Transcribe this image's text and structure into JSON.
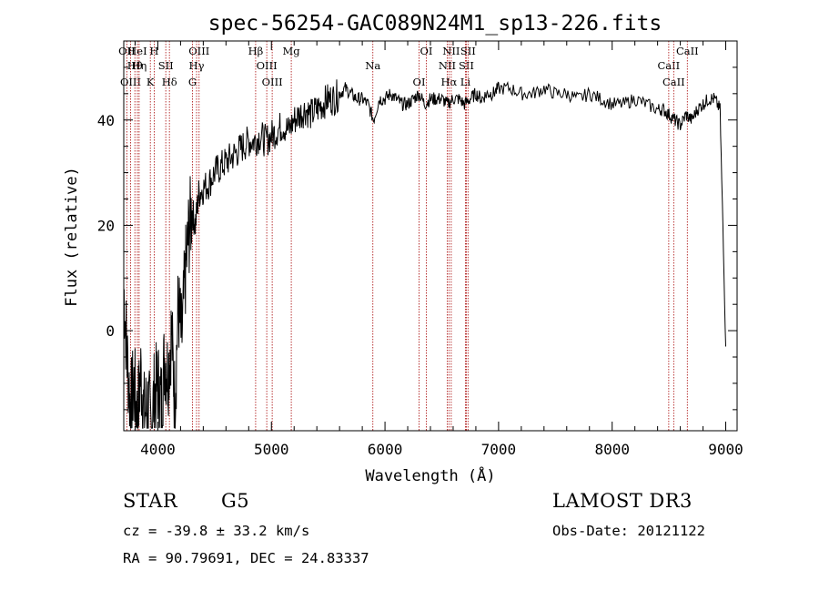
{
  "chart_data": {
    "type": "line",
    "title": "spec-56254-GAC089N24M1_sp13-226.fits",
    "xlabel": "Wavelength (Å)",
    "ylabel": "Flux (relative)",
    "xlim": [
      3700,
      9100
    ],
    "ylim": [
      -19,
      55
    ],
    "xticks": [
      4000,
      5000,
      6000,
      7000,
      8000,
      9000
    ],
    "yticks": [
      0,
      20,
      40
    ],
    "series": [
      {
        "name": "flux",
        "x": [
          3700,
          3730,
          3760,
          3790,
          3820,
          3850,
          3880,
          3910,
          3940,
          3970,
          4000,
          4030,
          4060,
          4090,
          4120,
          4150,
          4180,
          4210,
          4240,
          4270,
          4300,
          4330,
          4360,
          4400,
          4450,
          4500,
          4550,
          4600,
          4650,
          4700,
          4750,
          4800,
          4850,
          4900,
          4950,
          5000,
          5050,
          5100,
          5150,
          5200,
          5250,
          5300,
          5350,
          5400,
          5450,
          5500,
          5550,
          5600,
          5650,
          5700,
          5750,
          5800,
          5850,
          5900,
          5950,
          6000,
          6050,
          6100,
          6150,
          6200,
          6250,
          6300,
          6350,
          6400,
          6450,
          6500,
          6550,
          6600,
          6650,
          6700,
          6750,
          6800,
          6850,
          6900,
          6950,
          7000,
          7100,
          7200,
          7300,
          7400,
          7500,
          7600,
          7700,
          7800,
          7900,
          8000,
          8100,
          8200,
          8300,
          8400,
          8450,
          8500,
          8550,
          8600,
          8650,
          8700,
          8750,
          8800,
          8850,
          8900,
          8950,
          9000
        ],
        "y": [
          8,
          -5,
          -15,
          -10,
          -17,
          -8,
          -16,
          -14,
          -18,
          -12,
          -10,
          -14,
          -5,
          -8,
          0,
          -14,
          5,
          -2,
          10,
          18,
          23,
          20,
          26,
          27,
          28,
          30,
          31,
          32,
          33,
          34,
          35,
          36,
          36,
          37,
          36,
          37,
          38,
          39,
          38,
          40,
          41,
          42,
          41,
          42,
          43,
          44,
          44,
          45,
          46,
          45,
          44,
          44,
          43,
          40,
          44,
          44,
          45,
          44,
          43,
          43,
          44,
          45,
          43,
          44,
          44,
          44,
          43,
          44,
          44,
          43,
          44,
          45,
          44,
          45,
          45,
          46,
          46,
          45,
          45,
          46,
          45,
          45,
          44,
          45,
          44,
          43,
          43,
          44,
          43,
          42,
          42,
          41,
          40,
          39,
          41,
          40,
          42,
          43,
          44,
          44,
          42,
          -3
        ]
      }
    ],
    "spectral_lines": [
      {
        "label": "OII",
        "wavelength": 3727
      },
      {
        "label": "Hθ",
        "wavelength": 3798
      },
      {
        "label": "OIII",
        "wavelength": 3760
      },
      {
        "label": "HeI",
        "wavelength": 3820
      },
      {
        "label": "Hη",
        "wavelength": 3835
      },
      {
        "label": "K",
        "wavelength": 3934
      },
      {
        "label": "H",
        "wavelength": 3968
      },
      {
        "label": "SII",
        "wavelength": 4070
      },
      {
        "label": "Hδ",
        "wavelength": 4102
      },
      {
        "label": "OIII",
        "wavelength": 4363
      },
      {
        "label": "Hγ",
        "wavelength": 4341
      },
      {
        "label": "G",
        "wavelength": 4305
      },
      {
        "label": "Hβ",
        "wavelength": 4861
      },
      {
        "label": "OIII",
        "wavelength": 4959
      },
      {
        "label": "OIII",
        "wavelength": 5007
      },
      {
        "label": "Mg",
        "wavelength": 5175
      },
      {
        "label": "Na",
        "wavelength": 5893
      },
      {
        "label": "OI",
        "wavelength": 6300
      },
      {
        "label": "OI",
        "wavelength": 6364
      },
      {
        "label": "NII",
        "wavelength": 6548
      },
      {
        "label": "Hα",
        "wavelength": 6563
      },
      {
        "label": "NII",
        "wavelength": 6583
      },
      {
        "label": "SII",
        "wavelength": 6716
      },
      {
        "label": "Li",
        "wavelength": 6708
      },
      {
        "label": "SII",
        "wavelength": 6731
      },
      {
        "label": "CaII",
        "wavelength": 8498
      },
      {
        "label": "CaII",
        "wavelength": 8542
      },
      {
        "label": "CaII",
        "wavelength": 8662
      }
    ]
  },
  "info": {
    "object_class": "STAR",
    "subclass": "G5",
    "survey": "LAMOST DR3",
    "cz": "cz = -39.8 ± 33.2 km/s",
    "obs_date": "Obs-Date: 20121122",
    "coords": "RA =  90.79691, DEC =  24.83337"
  },
  "colors": {
    "axis": "#000000",
    "spectrum": "#000000",
    "line_marker": "#b22222"
  }
}
